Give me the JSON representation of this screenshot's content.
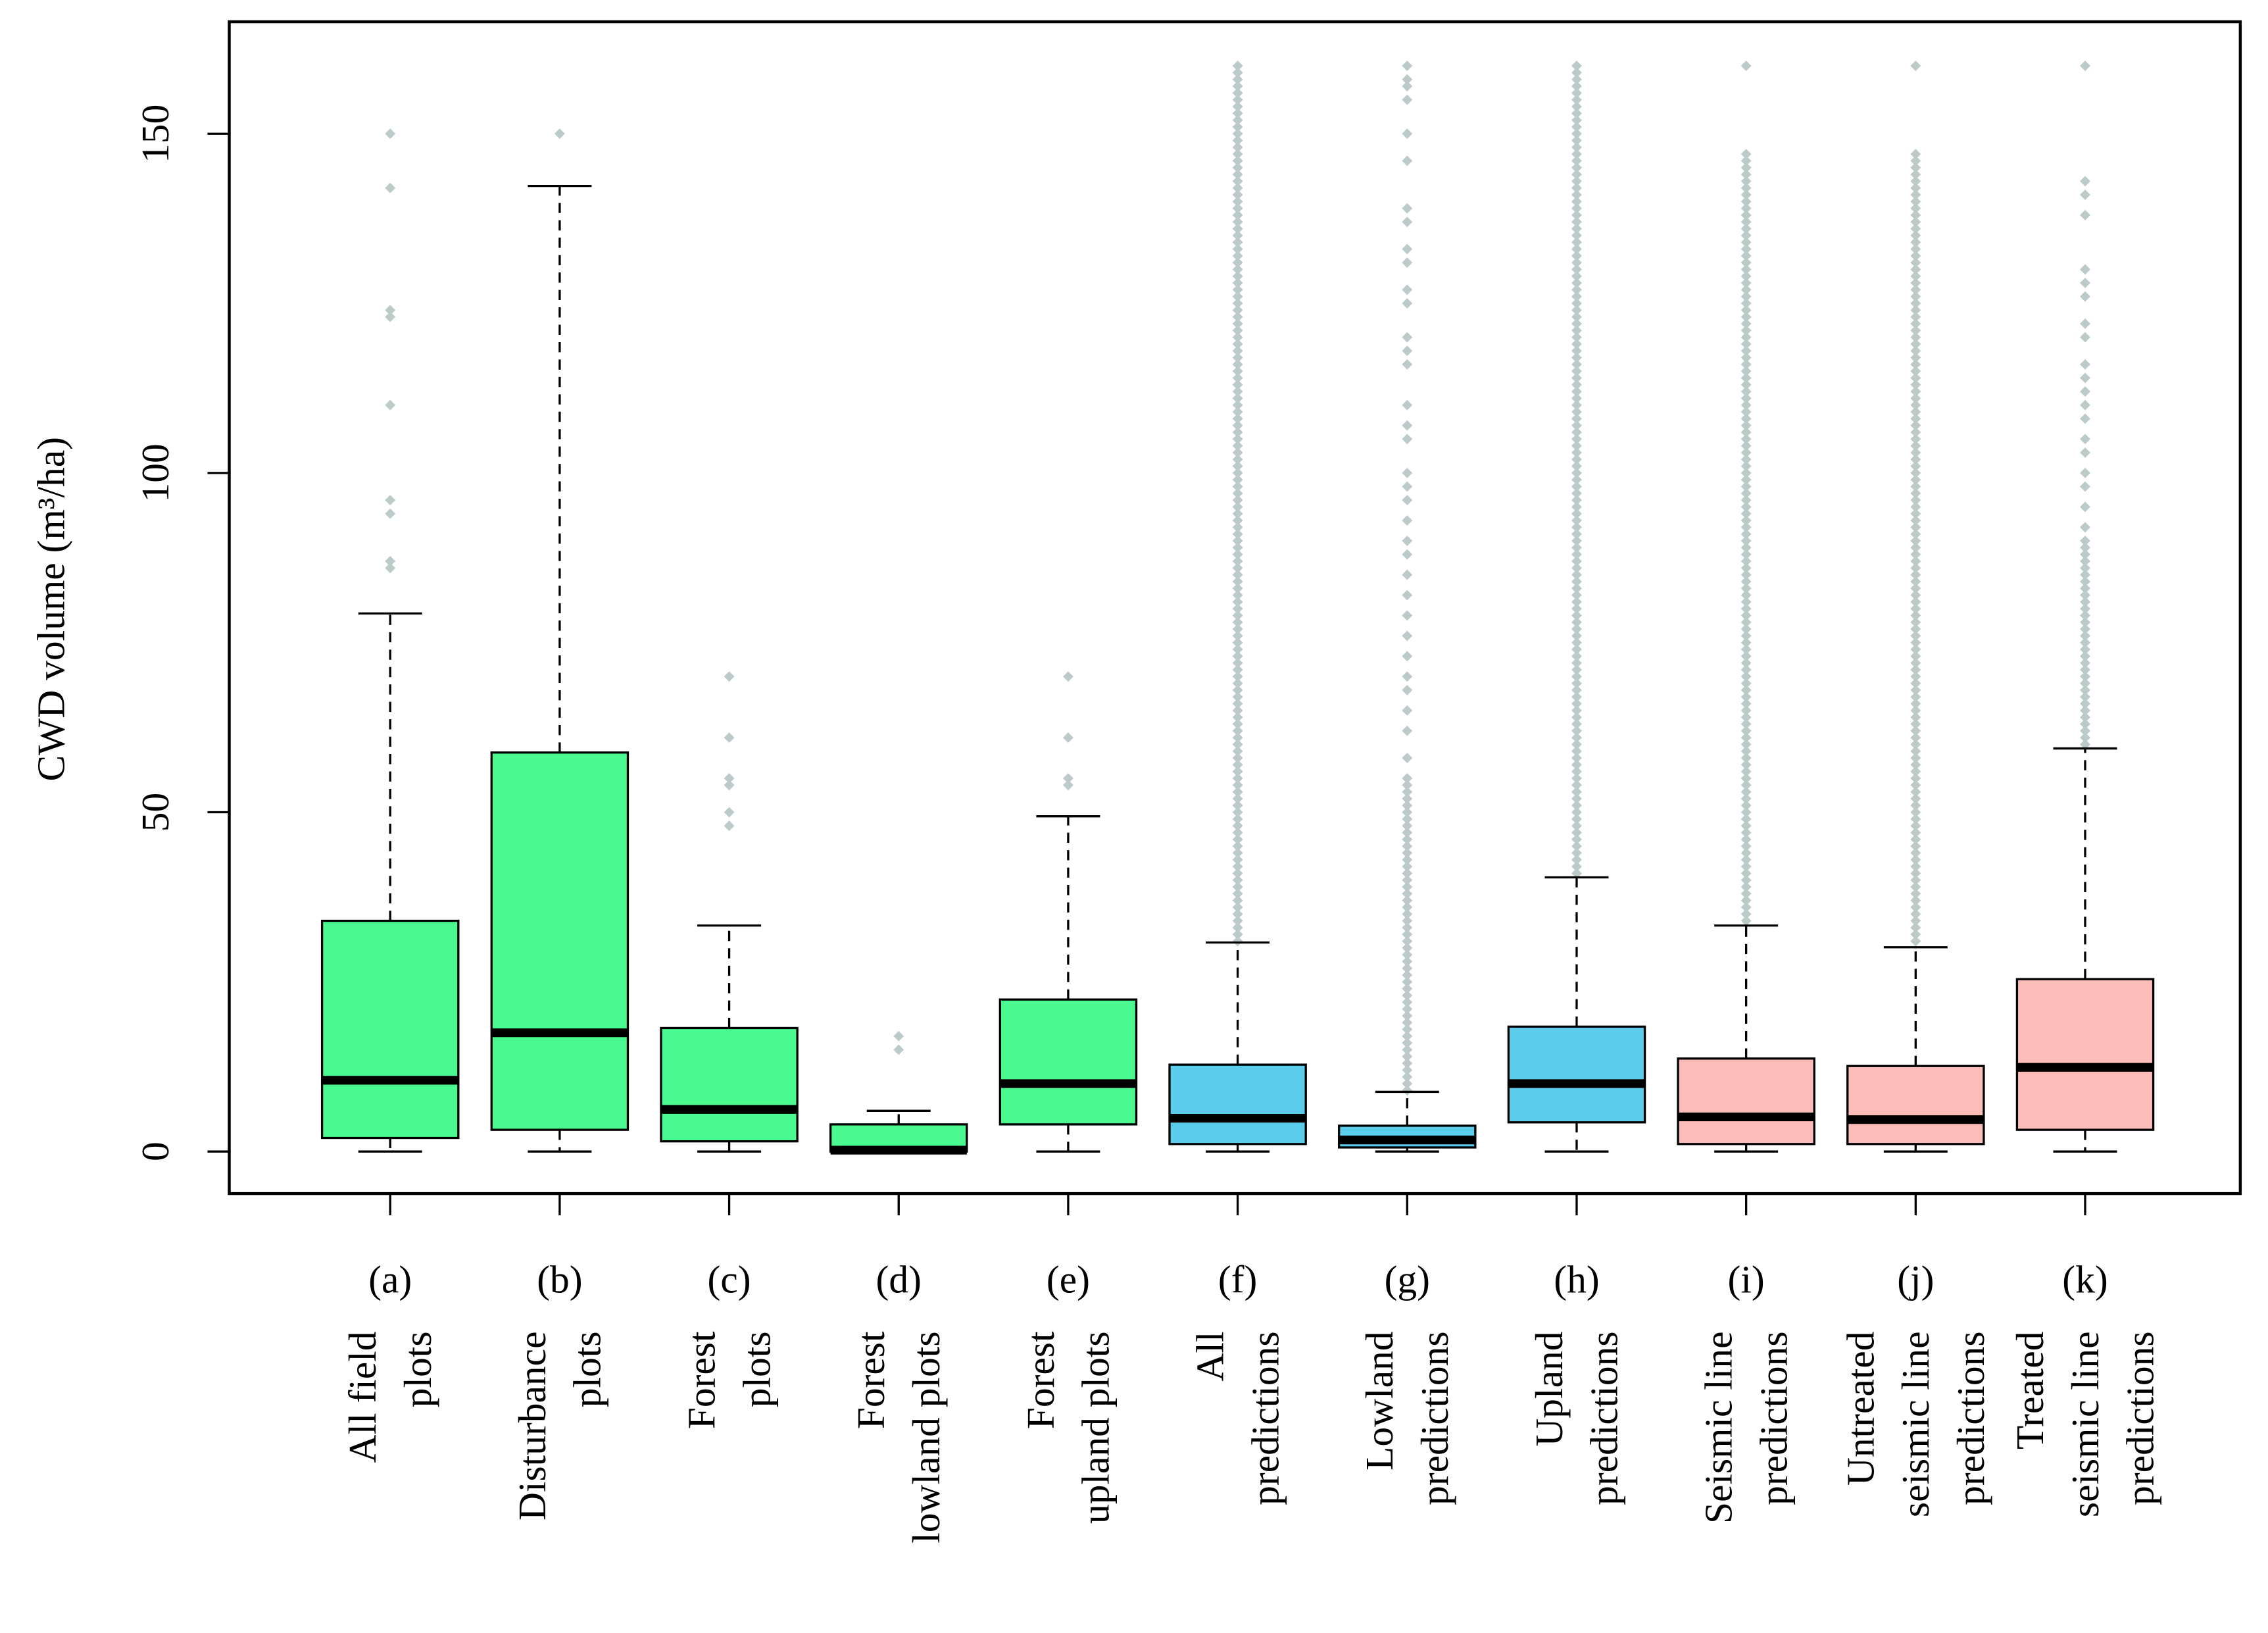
{
  "chart_data": {
    "type": "box",
    "y_label": "CWD volume (m³/ha)",
    "ylim": [
      -6.2,
      166.5
    ],
    "yticks": [
      0,
      50,
      100,
      150
    ],
    "categories": [
      "(a)",
      "(b)",
      "(c)",
      "(d)",
      "(e)",
      "(f)",
      "(g)",
      "(h)",
      "(i)",
      "(j)",
      "(k)"
    ],
    "labels": [
      [
        "All field",
        "plots"
      ],
      [
        "Disturbance",
        "plots"
      ],
      [
        "Forest",
        "plots"
      ],
      [
        "Forest",
        "lowland plots"
      ],
      [
        "Forest",
        "upland plots"
      ],
      [
        "All",
        "predictions"
      ],
      [
        "Lowland",
        "predictions"
      ],
      [
        "Upland",
        "predictions"
      ],
      [
        "Seismic line",
        "predictions"
      ],
      [
        "Untreated",
        "seismic line",
        "predictions"
      ],
      [
        "Treated",
        "seismic line",
        "predictions"
      ]
    ],
    "flier_color": "#bccaca",
    "boxes": [
      {
        "color": "#4af98f",
        "whislo": 0,
        "q1": 2,
        "med": 10.5,
        "q3": 34,
        "whishi": 79.3,
        "fliers": [
          86,
          87,
          94,
          96,
          110,
          123,
          124,
          142,
          150
        ]
      },
      {
        "color": "#4af98f",
        "whislo": 0,
        "q1": 3.2,
        "med": 17.5,
        "q3": 58.8,
        "whishi": 142.3,
        "fliers": [
          150
        ]
      },
      {
        "color": "#4af98f",
        "whislo": 0,
        "q1": 1.5,
        "med": 6.2,
        "q3": 18.2,
        "whishi": 33.3,
        "fliers": [
          48,
          50,
          54,
          55,
          61,
          70
        ]
      },
      {
        "color": "#4af98f",
        "whislo": 0,
        "q1": 0,
        "med": 0.2,
        "q3": 4,
        "whishi": 6,
        "fliers": [
          15,
          17
        ]
      },
      {
        "color": "#4af98f",
        "whislo": 0,
        "q1": 4,
        "med": 10,
        "q3": 22.4,
        "whishi": 49.4,
        "fliers": [
          54,
          55,
          61,
          70
        ]
      },
      {
        "color": "#5bcdec",
        "whislo": 0,
        "q1": 1.1,
        "med": 4.9,
        "q3": 12.8,
        "whishi": 30.8,
        "fliers": [
          31,
          32,
          33,
          34,
          35,
          36,
          37,
          38,
          39,
          40,
          41,
          42,
          43,
          44,
          45,
          46,
          47,
          48,
          49,
          50,
          51,
          52,
          53,
          54,
          55,
          56,
          57,
          58,
          59,
          60,
          61,
          62,
          63,
          64,
          65,
          66,
          67,
          68,
          69,
          70,
          71,
          72,
          73,
          74,
          75,
          76,
          77,
          78,
          79,
          80,
          81,
          82,
          83,
          84,
          85,
          86,
          87,
          88,
          89,
          90,
          91,
          92,
          93,
          94,
          95,
          96,
          97,
          98,
          99,
          100,
          101,
          102,
          103,
          104,
          105,
          106,
          107,
          108,
          109,
          110,
          111,
          112,
          113,
          114,
          115,
          116,
          117,
          118,
          119,
          120,
          121,
          122,
          123,
          124,
          125,
          126,
          127,
          128,
          129,
          130,
          131,
          132,
          133,
          134,
          135,
          136,
          137,
          138,
          139,
          140,
          141,
          142,
          143,
          144,
          145,
          146,
          147,
          148,
          149,
          150,
          151,
          152,
          153,
          154,
          155,
          156,
          157,
          158,
          159,
          160
        ]
      },
      {
        "color": "#5bcdec",
        "whislo": 0,
        "q1": 0.6,
        "med": 1.7,
        "q3": 3.8,
        "whishi": 8.8,
        "fliers": [
          9,
          10,
          11,
          12,
          13,
          14,
          15,
          16,
          17,
          18,
          19,
          20,
          21,
          22,
          23,
          24,
          25,
          26,
          27,
          28,
          29,
          30,
          31,
          32,
          33,
          34,
          35,
          36,
          37,
          38,
          39,
          40,
          41,
          42,
          43,
          44,
          45,
          46,
          47,
          48,
          49,
          50,
          51,
          52,
          53,
          54,
          55,
          58,
          62,
          65,
          68,
          70,
          73,
          76,
          79,
          82,
          85,
          88,
          90,
          93,
          96,
          98,
          100,
          105,
          107,
          110,
          116,
          118,
          120,
          125,
          127,
          131,
          133,
          137,
          139,
          146,
          150,
          155,
          157,
          158,
          160
        ]
      },
      {
        "color": "#5bcdec",
        "whislo": 0,
        "q1": 4.3,
        "med": 10,
        "q3": 18.4,
        "whishi": 40.4,
        "fliers": [
          41,
          42,
          43,
          44,
          45,
          46,
          47,
          48,
          49,
          50,
          51,
          52,
          53,
          54,
          55,
          56,
          57,
          58,
          59,
          60,
          61,
          62,
          63,
          64,
          65,
          66,
          67,
          68,
          69,
          70,
          71,
          72,
          73,
          74,
          75,
          76,
          77,
          78,
          79,
          80,
          81,
          82,
          83,
          84,
          85,
          86,
          87,
          88,
          89,
          90,
          91,
          92,
          93,
          94,
          95,
          96,
          97,
          98,
          99,
          100,
          101,
          102,
          103,
          104,
          105,
          106,
          107,
          108,
          109,
          110,
          111,
          112,
          113,
          114,
          115,
          116,
          117,
          118,
          119,
          120,
          121,
          122,
          123,
          124,
          125,
          126,
          127,
          128,
          129,
          130,
          131,
          132,
          133,
          134,
          135,
          136,
          137,
          138,
          139,
          140,
          141,
          142,
          143,
          144,
          145,
          146,
          147,
          148,
          149,
          150,
          151,
          152,
          153,
          154,
          155,
          156,
          157,
          158,
          159,
          160
        ]
      },
      {
        "color": "#fcbdb9",
        "whislo": 0,
        "q1": 1.1,
        "med": 5.1,
        "q3": 13.7,
        "whishi": 33.3,
        "fliers": [
          34,
          35,
          36,
          37,
          38,
          39,
          40,
          41,
          42,
          43,
          44,
          45,
          46,
          47,
          48,
          49,
          50,
          51,
          52,
          53,
          54,
          55,
          56,
          57,
          58,
          59,
          60,
          61,
          62,
          63,
          64,
          65,
          66,
          67,
          68,
          69,
          70,
          71,
          72,
          73,
          74,
          75,
          76,
          77,
          78,
          79,
          80,
          81,
          82,
          83,
          84,
          85,
          86,
          87,
          88,
          89,
          90,
          91,
          92,
          93,
          94,
          95,
          96,
          97,
          98,
          99,
          100,
          101,
          102,
          103,
          104,
          105,
          106,
          107,
          108,
          109,
          110,
          111,
          112,
          113,
          114,
          115,
          116,
          117,
          118,
          119,
          120,
          121,
          122,
          123,
          124,
          125,
          126,
          127,
          128,
          129,
          130,
          131,
          132,
          133,
          134,
          135,
          136,
          137,
          138,
          139,
          140,
          141,
          142,
          143,
          144,
          145,
          146,
          147,
          160
        ]
      },
      {
        "color": "#fcbdb9",
        "whislo": 0,
        "q1": 1.1,
        "med": 4.7,
        "q3": 12.6,
        "whishi": 30.1,
        "fliers": [
          31,
          32,
          33,
          34,
          35,
          36,
          37,
          38,
          39,
          40,
          41,
          42,
          43,
          44,
          45,
          46,
          47,
          48,
          49,
          50,
          51,
          52,
          53,
          54,
          55,
          56,
          57,
          58,
          59,
          60,
          61,
          62,
          63,
          64,
          65,
          66,
          67,
          68,
          69,
          70,
          71,
          72,
          73,
          74,
          75,
          76,
          77,
          78,
          79,
          80,
          81,
          82,
          83,
          84,
          85,
          86,
          87,
          88,
          89,
          90,
          91,
          92,
          93,
          94,
          95,
          96,
          97,
          98,
          99,
          100,
          101,
          102,
          103,
          104,
          105,
          106,
          107,
          108,
          109,
          110,
          111,
          112,
          113,
          114,
          115,
          116,
          117,
          118,
          119,
          120,
          121,
          122,
          123,
          124,
          125,
          126,
          127,
          128,
          129,
          130,
          131,
          132,
          133,
          134,
          135,
          136,
          137,
          138,
          139,
          140,
          141,
          142,
          143,
          144,
          145,
          146,
          147,
          160
        ]
      },
      {
        "color": "#fcbdb9",
        "whislo": 0,
        "q1": 3.2,
        "med": 12.4,
        "q3": 25.4,
        "whishi": 59.4,
        "fliers": [
          60,
          61,
          62,
          63,
          64,
          65,
          66,
          67,
          68,
          69,
          70,
          71,
          72,
          73,
          74,
          75,
          76,
          77,
          78,
          79,
          80,
          81,
          82,
          83,
          84,
          85,
          86,
          87,
          88,
          89,
          90,
          92,
          95,
          98,
          100,
          103,
          105,
          108,
          110,
          112,
          114,
          116,
          120,
          122,
          126,
          128,
          130,
          138,
          141,
          143,
          160
        ]
      }
    ]
  }
}
